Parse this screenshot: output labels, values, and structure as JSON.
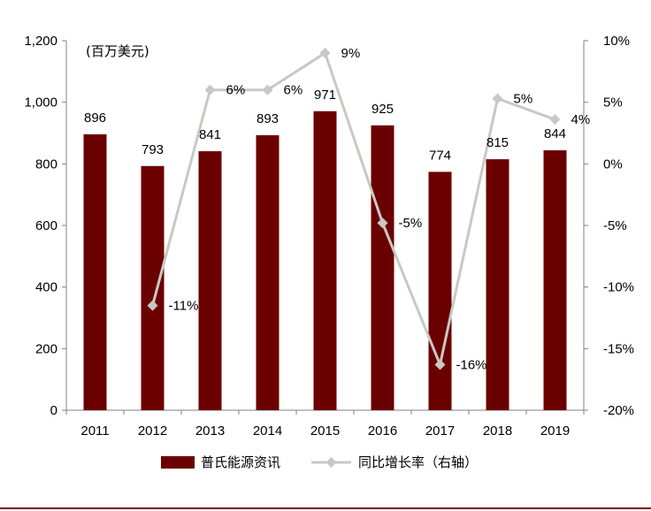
{
  "chart_data": {
    "type": "bar",
    "categories": [
      "2011",
      "2012",
      "2013",
      "2014",
      "2015",
      "2016",
      "2017",
      "2018",
      "2019"
    ],
    "unit_label": "(百万美元)",
    "series": [
      {
        "name": "普氏能源资讯",
        "type": "bar",
        "axis": "left",
        "color": "#6b0000",
        "values": [
          896,
          793,
          841,
          893,
          971,
          925,
          774,
          815,
          844
        ],
        "labels": [
          "896",
          "793",
          "841",
          "893",
          "971",
          "925",
          "774",
          "815",
          "844"
        ]
      },
      {
        "name": "同比增长率（右轴）",
        "type": "line",
        "axis": "right",
        "color": "#c8c8c4",
        "values": [
          null,
          -11.5,
          6,
          6,
          9,
          -4.8,
          -16.3,
          5.3,
          3.6
        ],
        "labels": [
          "",
          "-11%",
          "6%",
          "6%",
          "9%",
          "-5%",
          "-16%",
          "5%",
          "4%"
        ]
      }
    ],
    "y_left": {
      "lim": [
        0,
        1200
      ],
      "ticks": [
        0,
        200,
        400,
        600,
        800,
        1000,
        1200
      ],
      "tick_labels": [
        "0",
        "200",
        "400",
        "600",
        "800",
        "1,000",
        "1,200"
      ]
    },
    "y_right": {
      "lim": [
        -20,
        10
      ],
      "ticks": [
        -20,
        -15,
        -10,
        -5,
        0,
        5,
        10
      ],
      "tick_labels": [
        "-20%",
        "-15%",
        "-10%",
        "-5%",
        "0%",
        "5%",
        "10%"
      ]
    },
    "grid": false,
    "legend_position": "bottom"
  }
}
